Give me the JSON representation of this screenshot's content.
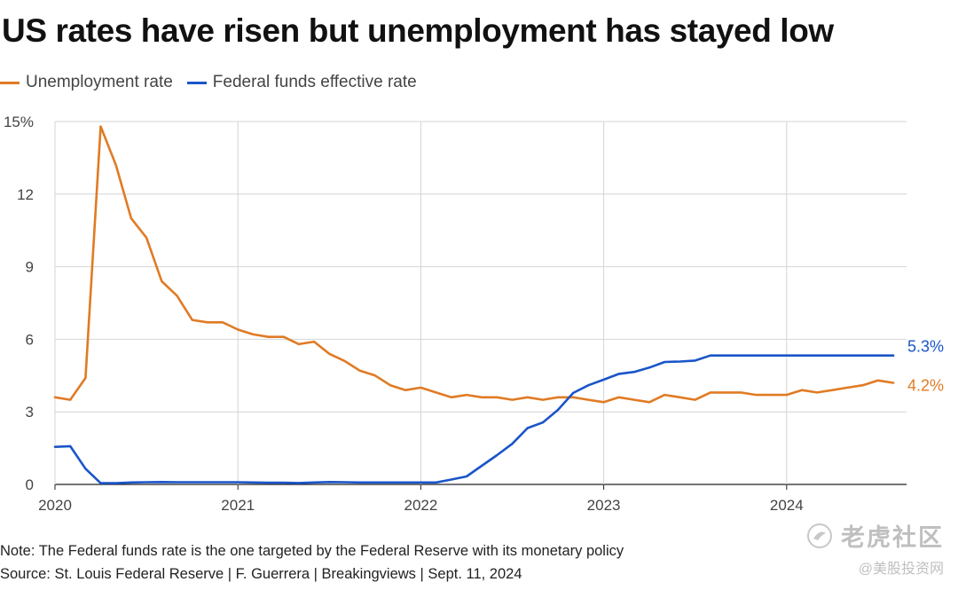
{
  "title": "US rates have risen but unemployment has stayed low",
  "legend": [
    {
      "label": "Unemployment rate",
      "color": "#E07B24"
    },
    {
      "label": "Federal funds effective rate",
      "color": "#1A55C9"
    }
  ],
  "note": "Note: The Federal funds rate is the one targeted by the Federal Reserve with its monetary policy",
  "source": "Source: St. Louis Federal Reserve | F. Guerrera | Breakingviews | Sept. 11, 2024",
  "watermark": {
    "main": "老虎社区",
    "sub": "@美股投资网"
  },
  "chart_data": {
    "type": "line",
    "x_start": "2020-01",
    "x_interval": "month",
    "x_ticks": [
      "2020",
      "2021",
      "2022",
      "2023",
      "2024"
    ],
    "y_ticks": [
      "0",
      "3",
      "6",
      "9",
      "12",
      "15%"
    ],
    "ylim": [
      0,
      15
    ],
    "grid": true,
    "legend_position": "top-left",
    "series": [
      {
        "name": "Unemployment rate",
        "color": "#E07B24",
        "end_label": "4.2%",
        "values": [
          3.6,
          3.5,
          4.4,
          14.8,
          13.2,
          11.0,
          10.2,
          8.4,
          7.8,
          6.8,
          6.7,
          6.7,
          6.4,
          6.2,
          6.1,
          6.1,
          5.8,
          5.9,
          5.4,
          5.1,
          4.7,
          4.5,
          4.1,
          3.9,
          4.0,
          3.8,
          3.6,
          3.7,
          3.6,
          3.6,
          3.5,
          3.6,
          3.5,
          3.6,
          3.6,
          3.5,
          3.4,
          3.6,
          3.5,
          3.4,
          3.7,
          3.6,
          3.5,
          3.8,
          3.8,
          3.8,
          3.7,
          3.7,
          3.7,
          3.9,
          3.8,
          3.9,
          4.0,
          4.1,
          4.3,
          4.2
        ]
      },
      {
        "name": "Federal funds effective rate",
        "color": "#1A55C9",
        "end_label": "5.3%",
        "values": [
          1.55,
          1.58,
          0.65,
          0.05,
          0.05,
          0.08,
          0.09,
          0.1,
          0.09,
          0.09,
          0.09,
          0.09,
          0.09,
          0.08,
          0.07,
          0.07,
          0.06,
          0.08,
          0.1,
          0.09,
          0.08,
          0.08,
          0.08,
          0.08,
          0.08,
          0.08,
          0.2,
          0.33,
          0.77,
          1.21,
          1.68,
          2.33,
          2.56,
          3.08,
          3.78,
          4.1,
          4.33,
          4.57,
          4.65,
          4.83,
          5.06,
          5.08,
          5.12,
          5.33,
          5.33,
          5.33,
          5.33,
          5.33,
          5.33,
          5.33,
          5.33,
          5.33,
          5.33,
          5.33,
          5.33,
          5.33
        ]
      }
    ]
  }
}
